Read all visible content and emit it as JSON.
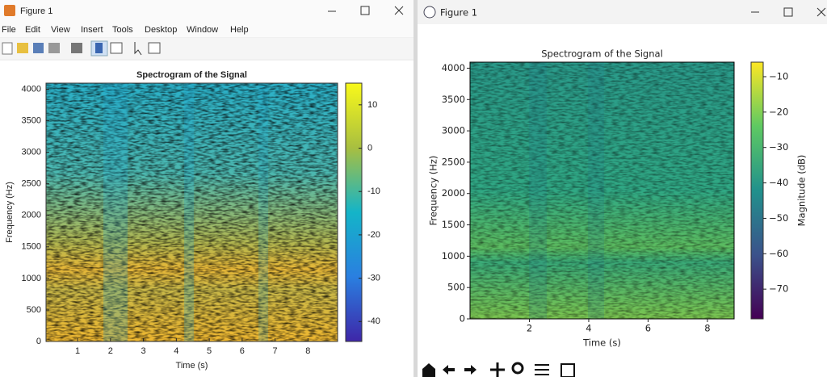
{
  "windows": [
    {
      "title": "Figure 1",
      "menu": [
        "File",
        "Edit",
        "View",
        "Insert",
        "Tools",
        "Desktop",
        "Window",
        "Help"
      ],
      "chart": {
        "type": "heatmap",
        "title": "Spectrogram of the Signal",
        "xlabel": "Time (s)",
        "ylabel": "Frequency (Hz)",
        "xlim": [
          0.04,
          8.9
        ],
        "xticks": [
          1,
          2,
          3,
          4,
          5,
          6,
          7,
          8
        ],
        "ylim": [
          0,
          4096
        ],
        "yticks": [
          0,
          500,
          1000,
          1500,
          2000,
          2500,
          3000,
          3500,
          4000
        ],
        "colorbar": {
          "lim": [
            -44.6,
            15
          ],
          "ticks": [
            10,
            0,
            -10,
            -20,
            -30,
            -40
          ]
        }
      }
    },
    {
      "title": "Figure 1",
      "chart": {
        "type": "heatmap",
        "title": "Spectrogram of the Signal",
        "xlabel": "Time (s)",
        "ylabel": "Frequency (Hz)",
        "xlim": [
          0,
          8.9
        ],
        "xticks": [
          2,
          4,
          6,
          8
        ],
        "ylim": [
          0,
          4096
        ],
        "yticks": [
          0,
          500,
          1000,
          1500,
          2000,
          2500,
          3000,
          3500,
          4000
        ],
        "colorbar": {
          "label": "Magnitude (dB)",
          "lim": [
            -78.4,
            -5.9
          ],
          "ticks": [
            {
              "value": -10,
              "label": "−10"
            },
            {
              "value": -20,
              "label": "−20"
            },
            {
              "value": -30,
              "label": "−30"
            },
            {
              "value": -40,
              "label": "−40"
            },
            {
              "value": -50,
              "label": "−50"
            },
            {
              "value": -60,
              "label": "−60"
            },
            {
              "value": -70,
              "label": "−70"
            }
          ]
        }
      }
    }
  ]
}
